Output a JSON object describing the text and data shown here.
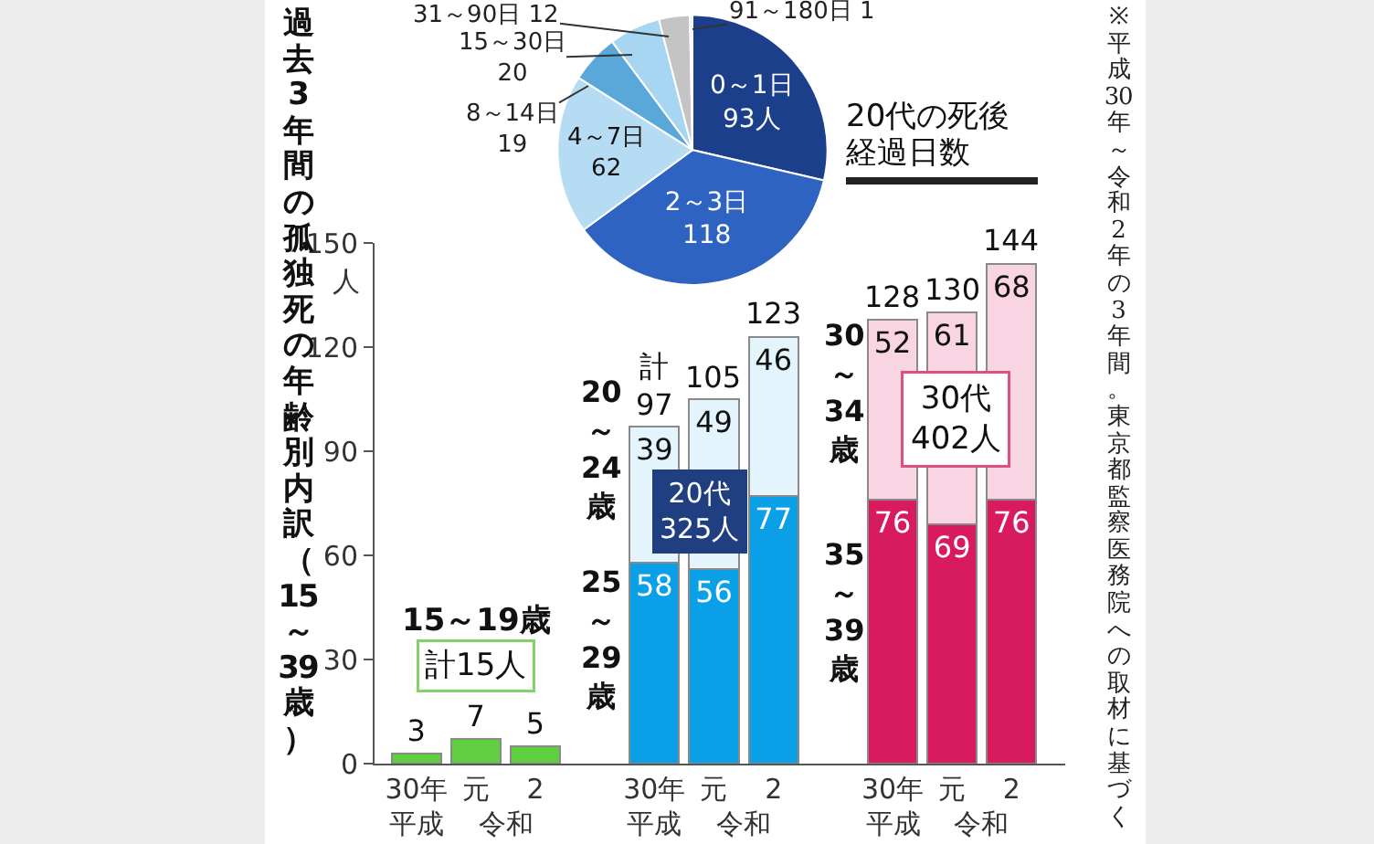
{
  "chart_data": [
    {
      "type": "pie",
      "title": "20代の死後経過日数",
      "categories": [
        "0～1日",
        "2～3日",
        "4～7日",
        "8～14日",
        "15～30日",
        "31～90日",
        "91～180日"
      ],
      "values": [
        93,
        118,
        62,
        19,
        20,
        12,
        1
      ],
      "colors": [
        "#1b3f8b",
        "#2e63c2",
        "#b5dcf3",
        "#5aa8d9",
        "#a6d6f2",
        "#c4c4c4",
        "#e8e8e8"
      ],
      "value_labels": [
        "93人",
        "118",
        "62",
        "19",
        "20",
        "12",
        "1"
      ]
    },
    {
      "type": "bar",
      "title": "過去3年間の孤独死の年齢別内訳（15～39歳）",
      "stacked": true,
      "categories": [
        "30年",
        "元",
        "2",
        null,
        "30年",
        "元",
        "2",
        null,
        "30年",
        "元",
        "2"
      ],
      "series": [
        {
          "values": [
            3,
            7,
            5,
            null,
            58,
            56,
            77,
            null,
            76,
            69,
            76
          ],
          "colors": [
            "#5fcf3f",
            "#5fcf3f",
            "#5fcf3f",
            null,
            "#0aa0e8",
            "#0aa0e8",
            "#0aa0e8",
            null,
            "#d81b5f",
            "#d81b5f",
            "#d81b5f"
          ]
        },
        {
          "values": [
            null,
            null,
            null,
            null,
            39,
            49,
            46,
            null,
            52,
            61,
            68
          ],
          "colors": [
            null,
            null,
            null,
            null,
            "#e3f4fc",
            "#e3f4fc",
            "#e3f4fc",
            null,
            "#f9d4e2",
            "#f9d4e2",
            "#f9d4e2"
          ]
        }
      ],
      "data_labels": true,
      "totals": [
        null,
        null,
        null,
        null,
        "計\n97",
        "105",
        "123",
        null,
        "128",
        "130",
        "144"
      ],
      "ylim": [
        0,
        150
      ],
      "yticks": [
        0,
        30,
        60,
        90,
        120,
        150
      ],
      "ylabel": "人",
      "annotations": [
        "15～19歳",
        "計15人",
        "20～24歳",
        "25～29歳",
        "20代\n325人",
        "30～34歳",
        "35～39歳",
        "30代\n402人",
        "平成",
        "令和",
        "平成",
        "令和",
        "平成",
        "令和",
        "※平成30年～令和2年の3年間。東京都監察医務院への取材に基づく"
      ]
    }
  ]
}
